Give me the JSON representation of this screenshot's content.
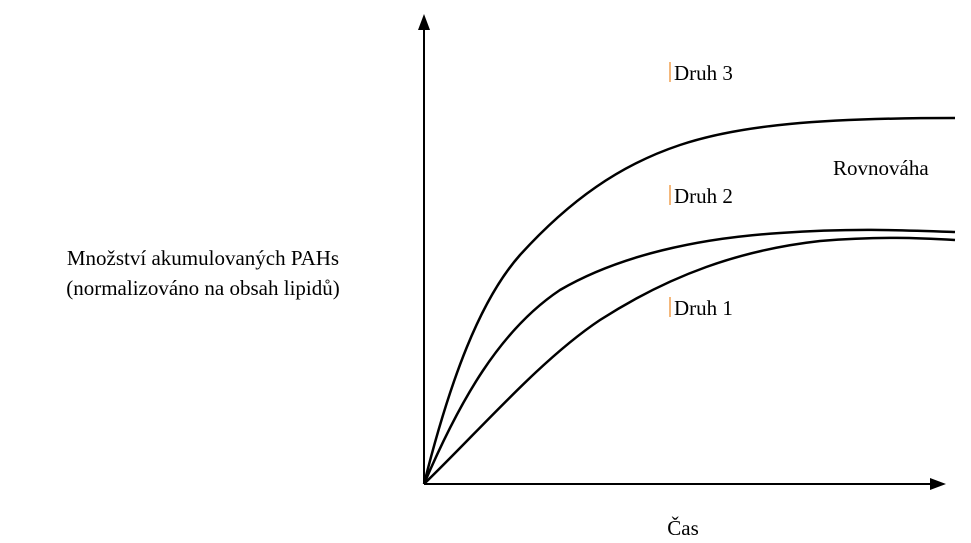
{
  "y_axis_label": [
    "Množství akumulovaných PAHs",
    "(normalizováno na obsah lipidů)"
  ],
  "x_axis_label": "Čas",
  "annotation": "Rovnováha",
  "curves": [
    {
      "label": "Druh 3"
    },
    {
      "label": "Druh 2"
    },
    {
      "label": "Druh 1"
    }
  ]
}
